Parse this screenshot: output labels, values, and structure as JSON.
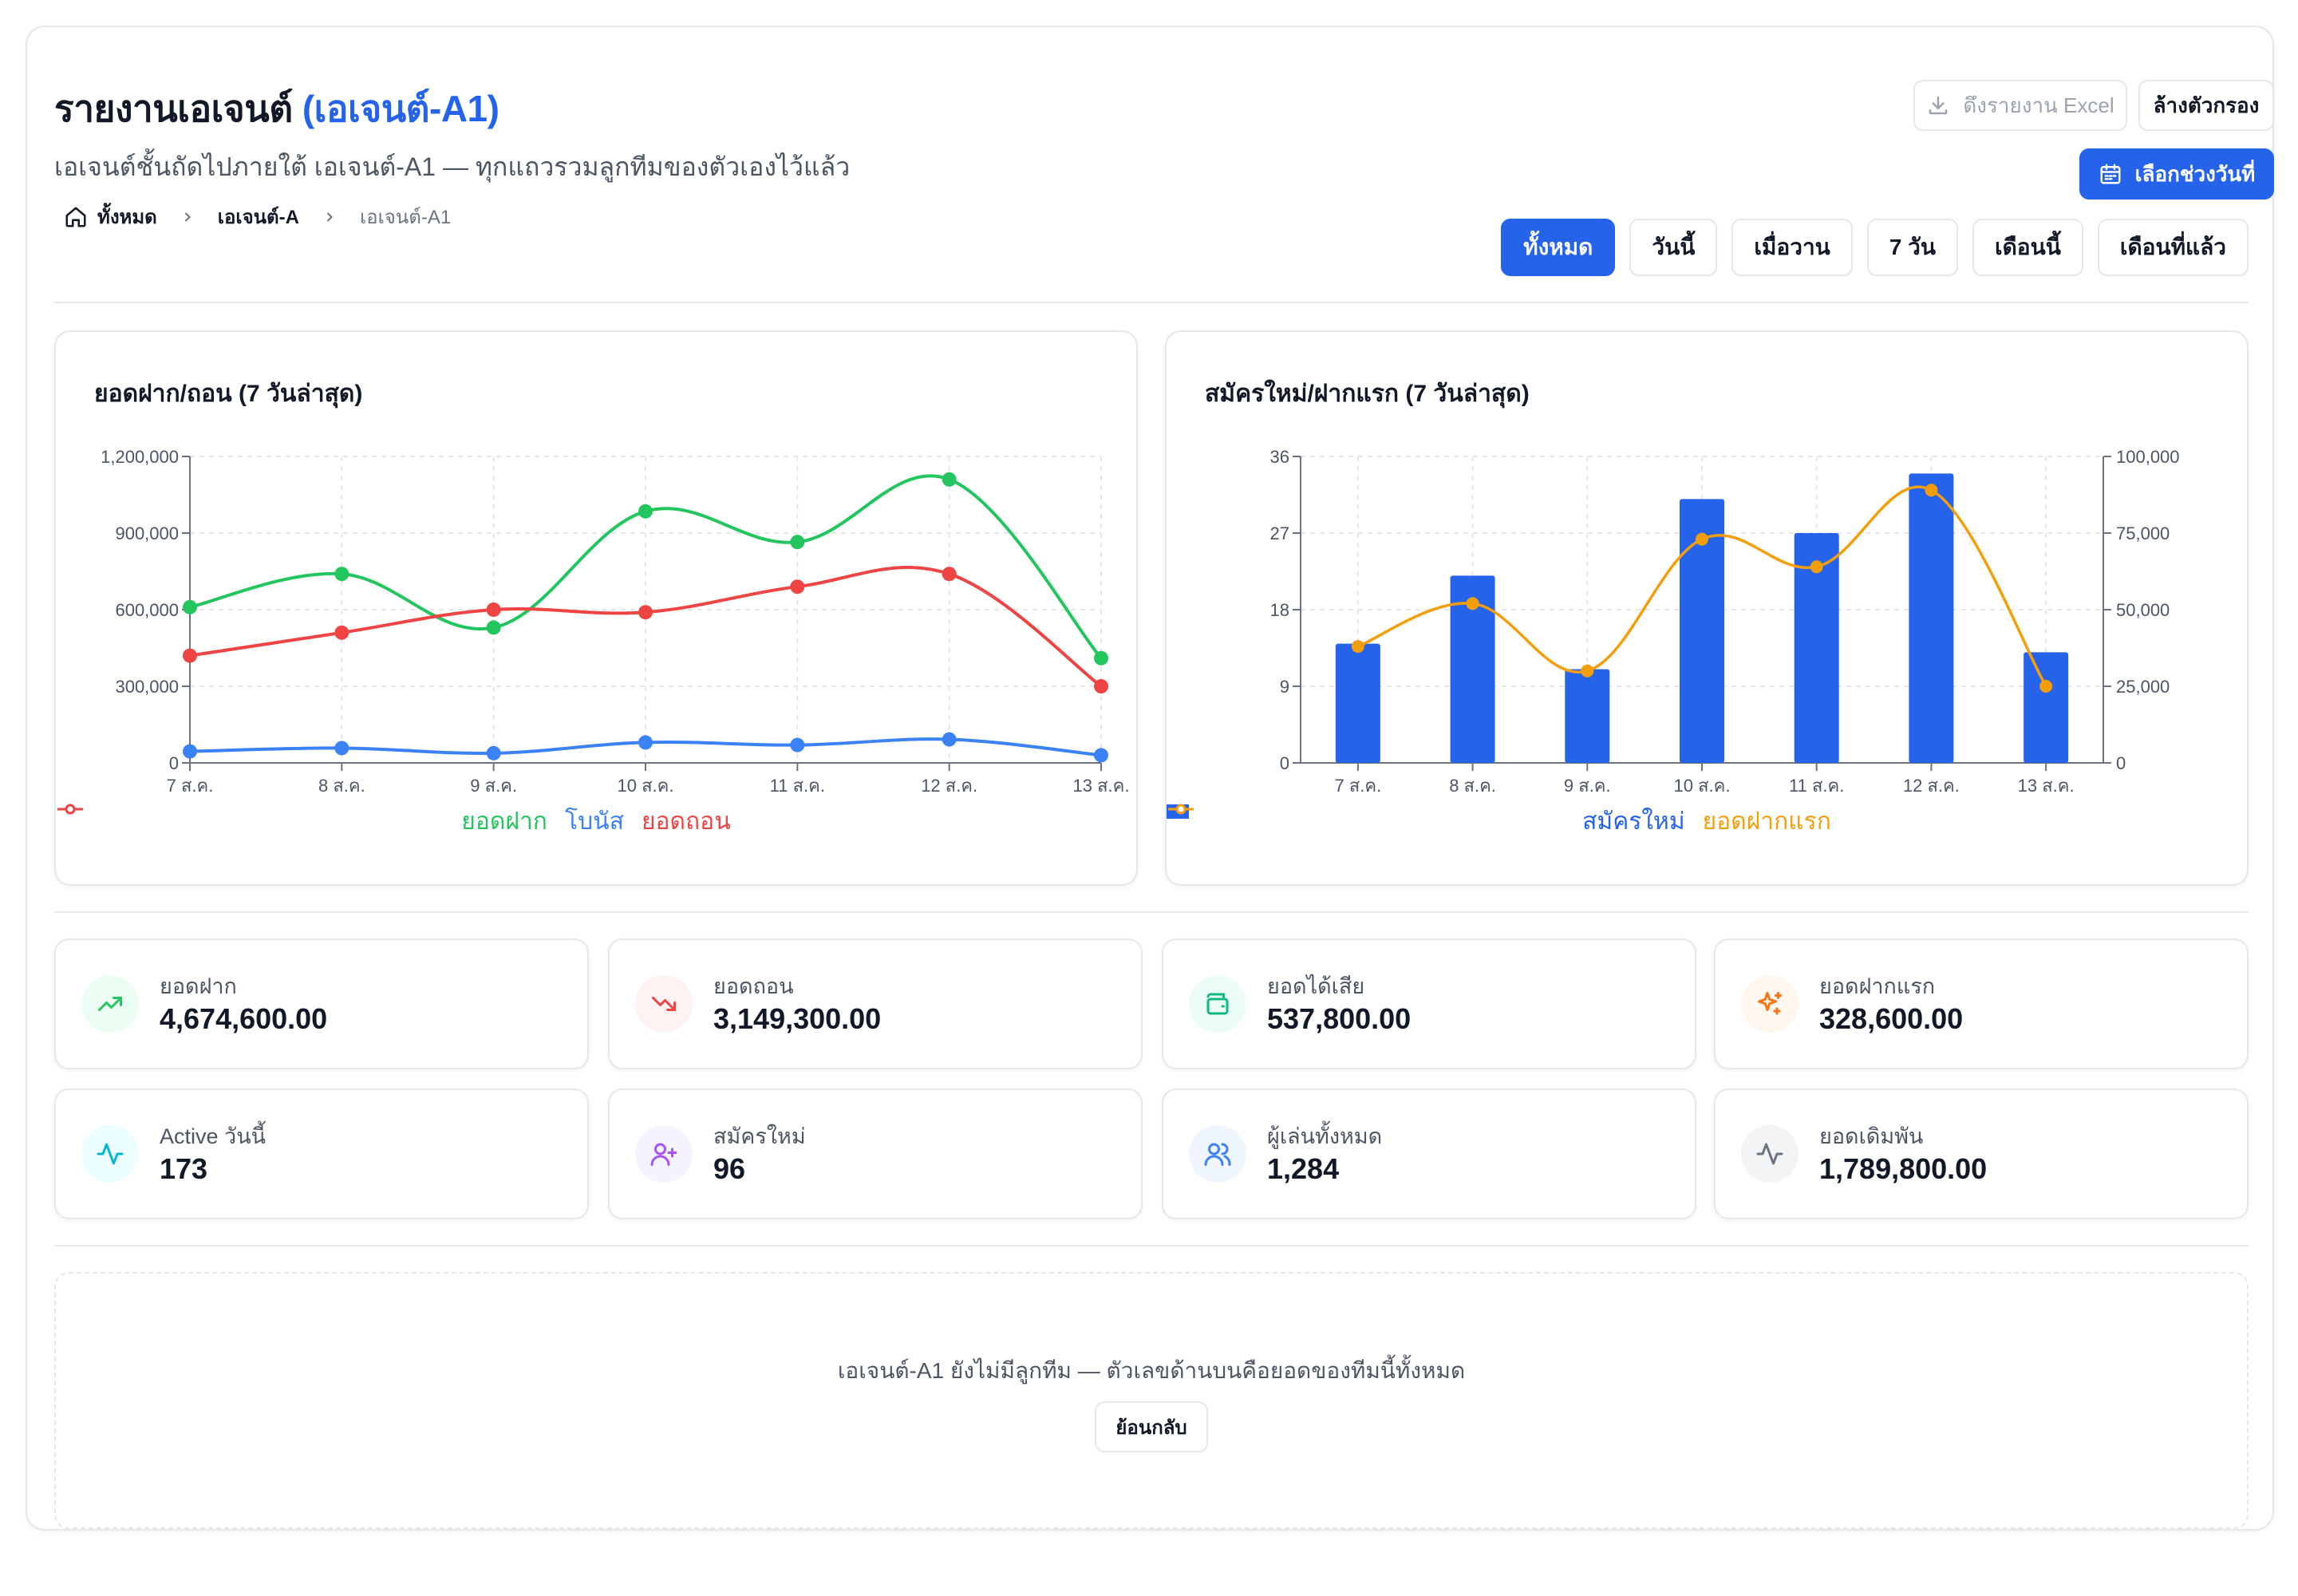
{
  "header": {
    "title_main": "รายงานเอเจนต์",
    "title_agent": "(เอเจนต์-A1)",
    "subtitle": "เอเจนต์ชั้นถัดไปภายใต้ เอเจนต์-A1 — ทุกแถวรวมลูกทีมของตัวเองไว้แล้ว",
    "breadcrumb": [
      "ทั้งหมด",
      "เอเจนต์-A",
      "เอเจนต์-A1"
    ],
    "export_label": "ดึงรายงาน Excel",
    "clear_filter_label": "ล้างตัวกรอง",
    "date_range_label": "เลือกช่วงวันที่"
  },
  "range_tabs": [
    {
      "label": "ทั้งหมด",
      "active": true
    },
    {
      "label": "วันนี้",
      "active": false
    },
    {
      "label": "เมื่อวาน",
      "active": false
    },
    {
      "label": "7 วัน",
      "active": false
    },
    {
      "label": "เดือนนี้",
      "active": false
    },
    {
      "label": "เดือนที่แล้ว",
      "active": false
    }
  ],
  "chart_data": [
    {
      "type": "line",
      "title": "ยอดฝาก/ถอน (7 วันล่าสุด)",
      "categories": [
        "7 ส.ค.",
        "8 ส.ค.",
        "9 ส.ค.",
        "10 ส.ค.",
        "11 ส.ค.",
        "12 ส.ค.",
        "13 ส.ค."
      ],
      "ylim": [
        0,
        1200000
      ],
      "yticks": [
        "0",
        "300,000",
        "600,000",
        "900,000",
        "1,200,000"
      ],
      "grid": true,
      "legend": "bottom",
      "series": [
        {
          "name": "ยอดฝาก",
          "color": "#22c55e",
          "values": [
            610000,
            740000,
            530000,
            985000,
            865000,
            1110000,
            410000
          ]
        },
        {
          "name": "โบนัส",
          "color": "#3b82f6",
          "values": [
            45000,
            58000,
            38000,
            80000,
            70000,
            92000,
            30000
          ]
        },
        {
          "name": "ยอดถอน",
          "color": "#ef4444",
          "values": [
            420000,
            510000,
            600000,
            590000,
            690000,
            740000,
            300000
          ]
        }
      ]
    },
    {
      "type": "bar",
      "title": "สมัครใหม่/ฝากแรก (7 วันล่าสุด)",
      "categories": [
        "7 ส.ค.",
        "8 ส.ค.",
        "9 ส.ค.",
        "10 ส.ค.",
        "11 ส.ค.",
        "12 ส.ค.",
        "13 ส.ค."
      ],
      "ylim_left": [
        0,
        36
      ],
      "yticks_left": [
        "0",
        "9",
        "18",
        "27",
        "36"
      ],
      "ylim_right": [
        0,
        100000
      ],
      "yticks_right": [
        "0",
        "25,000",
        "50,000",
        "75,000",
        "100,000"
      ],
      "grid": true,
      "legend": "bottom",
      "series": [
        {
          "name": "สมัครใหม่",
          "type": "bar",
          "axis": "left",
          "color": "#2563eb",
          "values": [
            14,
            22,
            11,
            31,
            27,
            34,
            13
          ]
        },
        {
          "name": "ยอดฝากแรก",
          "type": "line",
          "axis": "right",
          "color": "#f59e0b",
          "values": [
            38000,
            52000,
            30000,
            73000,
            64000,
            89000,
            25000
          ]
        }
      ]
    }
  ],
  "stats": [
    {
      "label": "ยอดฝาก",
      "value": "4,674,600.00",
      "icon": "trending-up-icon",
      "color": "#22c55e",
      "bg": "#ecfdf3"
    },
    {
      "label": "ยอดถอน",
      "value": "3,149,300.00",
      "icon": "trending-down-icon",
      "color": "#ef4444",
      "bg": "#fef2f2"
    },
    {
      "label": "ยอดได้เสีย",
      "value": "537,800.00",
      "icon": "wallet-icon",
      "color": "#10b981",
      "bg": "#ecfdf5"
    },
    {
      "label": "ยอดฝากแรก",
      "value": "328,600.00",
      "icon": "sparkles-icon",
      "color": "#f97316",
      "bg": "#fff7ed"
    },
    {
      "label": "Active วันนี้",
      "value": "173",
      "icon": "activity-icon",
      "color": "#06b6d4",
      "bg": "#ecfeff"
    },
    {
      "label": "สมัครใหม่",
      "value": "96",
      "icon": "user-plus-icon",
      "color": "#a855f7",
      "bg": "#f5f3ff"
    },
    {
      "label": "ผู้เล่นทั้งหมด",
      "value": "1,284",
      "icon": "users-icon",
      "color": "#3b82f6",
      "bg": "#eff6ff"
    },
    {
      "label": "ยอดเดิมพัน",
      "value": "1,789,800.00",
      "icon": "pulse-icon",
      "color": "#6b7280",
      "bg": "#f3f4f6"
    }
  ],
  "empty_state": {
    "message": "เอเจนต์-A1 ยังไม่มีลูกทีม — ตัวเลขด้านบนคือยอดของทีมนี้ทั้งหมด",
    "back_label": "ย้อนกลับ"
  }
}
